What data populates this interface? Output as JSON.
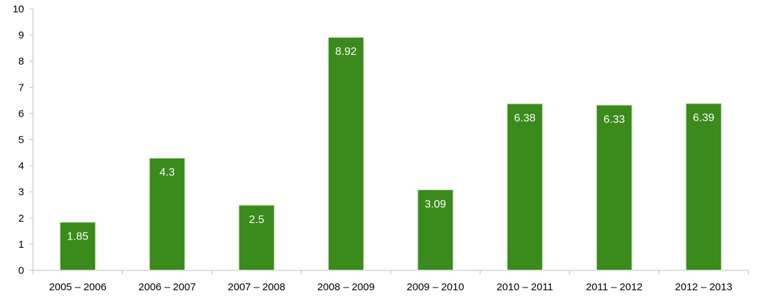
{
  "chart_data": {
    "type": "bar",
    "title": "",
    "xlabel": "",
    "ylabel": "",
    "categories": [
      "2005 – 2006",
      "2006 – 2007",
      "2007 – 2008",
      "2008 – 2009",
      "2009 – 2010",
      "2010 – 2011",
      "2011 – 2012",
      "2012 – 2013"
    ],
    "values": [
      1.85,
      4.3,
      2.5,
      8.92,
      3.09,
      6.38,
      6.33,
      6.39
    ],
    "data_labels": [
      "1.85",
      "4.3",
      "2.5",
      "8.92",
      "3.09",
      "6.38",
      "6.33",
      "6.39"
    ],
    "ylim": [
      0,
      10
    ],
    "yticks": [
      "0",
      "1",
      "2",
      "3",
      "4",
      "5",
      "6",
      "7",
      "8",
      "9",
      "10"
    ],
    "grid": false,
    "legend": "none",
    "colors": {
      "bar": "#3a8a1c",
      "bar_edge": "#e6efe0",
      "axis": "#bdbdbd"
    }
  }
}
